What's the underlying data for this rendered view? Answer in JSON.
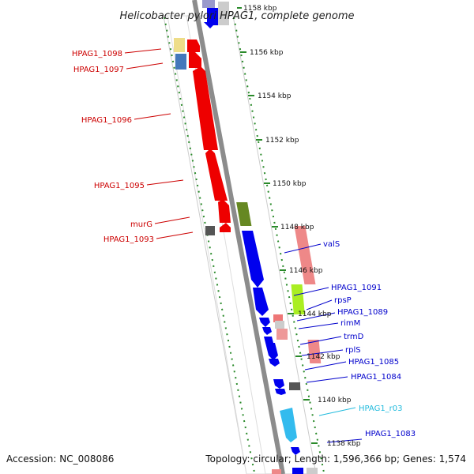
{
  "title": "Helicobacter pylori HPAG1, complete genome",
  "accession": "Accession: NC_008086",
  "topology": "Topology: circular; Length: 1,596,366 bp; Genes: 1,574",
  "colors": {
    "forward_label": "#cc0000",
    "reverse_label": "#0000cc",
    "rna_label": "#22bbdd",
    "backbone": "#999999",
    "tick": "#228822"
  },
  "ruler_ticks": [
    "1158 kbp",
    "1156 kbp",
    "1154 kbp",
    "1152 kbp",
    "1150 kbp",
    "1148 kbp",
    "1146 kbp",
    "1144 kbp",
    "1142 kbp",
    "1140 kbp",
    "1138 kbp"
  ],
  "left_labels": [
    "HPAG1_1098",
    "HPAG1_1097",
    "HPAG1_1096",
    "HPAG1_1095",
    "murG",
    "HPAG1_1093"
  ],
  "right_labels": [
    "valS",
    "HPAG1_1091",
    "rpsP",
    "HPAG1_1089",
    "rimM",
    "trmD",
    "rplS",
    "HPAG1_1085",
    "HPAG1_1084",
    "HPAG1_r03",
    "HPAG1_1083"
  ]
}
